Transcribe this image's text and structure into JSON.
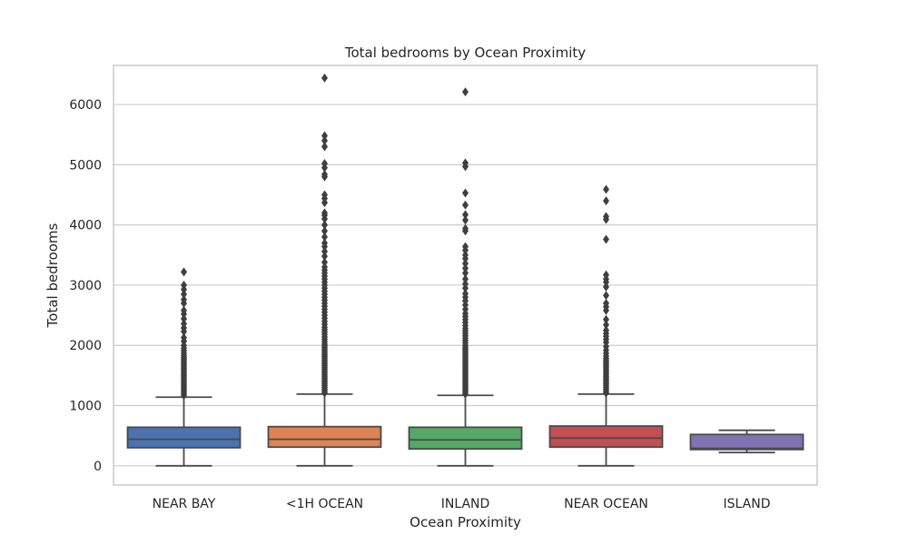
{
  "chart_data": {
    "type": "box",
    "title": "Total bedrooms by Ocean Proximity",
    "xlabel": "Ocean Proximity",
    "ylabel": "Total bedrooms",
    "ylim": [
      -320,
      6650
    ],
    "y_ticks": [
      0,
      1000,
      2000,
      3000,
      4000,
      5000,
      6000
    ],
    "grid": "horizontal",
    "categories": [
      "NEAR BAY",
      "<1H OCEAN",
      "INLAND",
      "NEAR OCEAN",
      "ISLAND"
    ],
    "colors": {
      "NEAR BAY": "#4c72b0",
      "<1H OCEAN": "#dd8452",
      "INLAND": "#55a868",
      "NEAR OCEAN": "#c44e52",
      "ISLAND": "#8172b3"
    },
    "boxes": [
      {
        "category": "NEAR BAY",
        "whisker_low": 0,
        "q1": 300,
        "median": 440,
        "q3": 640,
        "whisker_high": 1140,
        "outliers": [
          1170,
          1200,
          1230,
          1260,
          1290,
          1320,
          1350,
          1380,
          1410,
          1440,
          1470,
          1500,
          1530,
          1560,
          1590,
          1620,
          1650,
          1680,
          1710,
          1740,
          1770,
          1800,
          1830,
          1870,
          1910,
          1950,
          2000,
          2070,
          2130,
          2230,
          2290,
          2360,
          2440,
          2520,
          2580,
          2700,
          2760,
          2850,
          2930,
          3000,
          3220
        ]
      },
      {
        "category": "<1H OCEAN",
        "whisker_low": 0,
        "q1": 310,
        "median": 440,
        "q3": 650,
        "whisker_high": 1190,
        "outliers": [
          1210,
          1240,
          1270,
          1300,
          1330,
          1360,
          1390,
          1420,
          1450,
          1480,
          1510,
          1540,
          1570,
          1600,
          1630,
          1660,
          1690,
          1720,
          1750,
          1780,
          1810,
          1840,
          1870,
          1900,
          1930,
          1960,
          1990,
          2020,
          2060,
          2100,
          2140,
          2180,
          2220,
          2260,
          2300,
          2350,
          2400,
          2450,
          2500,
          2550,
          2600,
          2650,
          2700,
          2750,
          2800,
          2850,
          2900,
          2950,
          3000,
          3050,
          3100,
          3150,
          3200,
          3250,
          3300,
          3380,
          3480,
          3560,
          3640,
          3700,
          3800,
          3900,
          4000,
          4100,
          4160,
          4200,
          4370,
          4440,
          4500,
          4800,
          4840,
          4950,
          5020,
          5300,
          5400,
          5480,
          6440
        ]
      },
      {
        "category": "INLAND",
        "whisker_low": 0,
        "q1": 280,
        "median": 430,
        "q3": 640,
        "whisker_high": 1170,
        "outliers": [
          1190,
          1220,
          1250,
          1280,
          1310,
          1340,
          1370,
          1400,
          1430,
          1460,
          1490,
          1520,
          1550,
          1580,
          1610,
          1640,
          1670,
          1700,
          1730,
          1760,
          1790,
          1820,
          1850,
          1880,
          1910,
          1940,
          1970,
          2000,
          2040,
          2080,
          2120,
          2160,
          2200,
          2240,
          2280,
          2330,
          2380,
          2430,
          2480,
          2530,
          2600,
          2670,
          2740,
          2800,
          2860,
          2950,
          3020,
          3100,
          3200,
          3280,
          3360,
          3440,
          3500,
          3580,
          3640,
          3900,
          3940,
          4080,
          4170,
          4330,
          4530,
          4970,
          5030,
          6210
        ]
      },
      {
        "category": "NEAR OCEAN",
        "whisker_low": 0,
        "q1": 310,
        "median": 460,
        "q3": 660,
        "whisker_high": 1190,
        "outliers": [
          1210,
          1240,
          1270,
          1300,
          1330,
          1360,
          1390,
          1420,
          1450,
          1480,
          1510,
          1540,
          1570,
          1600,
          1630,
          1660,
          1690,
          1720,
          1750,
          1780,
          1820,
          1870,
          1920,
          1980,
          2050,
          2100,
          2150,
          2200,
          2250,
          2340,
          2430,
          2580,
          2640,
          2700,
          2830,
          2970,
          3050,
          3100,
          3170,
          3760,
          4090,
          4140,
          4400,
          4590
        ]
      },
      {
        "category": "ISLAND",
        "whisker_low": 220,
        "q1": 270,
        "median": 290,
        "q3": 520,
        "whisker_high": 590,
        "outliers": []
      }
    ]
  }
}
